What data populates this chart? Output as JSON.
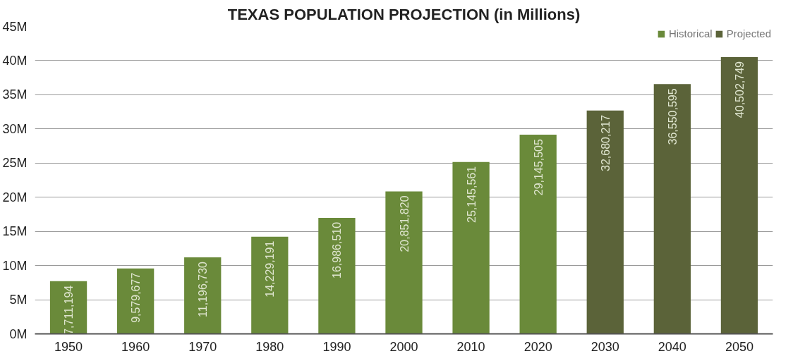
{
  "chart_data": {
    "type": "bar",
    "title": "TEXAS POPULATION PROJECTION (in Millions)",
    "categories": [
      "1950",
      "1960",
      "1970",
      "1980",
      "1990",
      "2000",
      "2010",
      "2020",
      "2030",
      "2040",
      "2050"
    ],
    "series": [
      {
        "name": "Historical",
        "color": "#6a8a3a",
        "values": [
          7711194,
          9579677,
          11196730,
          14229191,
          16986510,
          20851820,
          25145561,
          29145505,
          null,
          null,
          null
        ],
        "value_labels": [
          "7,711,194",
          "9,579,677",
          "11,196,730",
          "14,229,191",
          "16,986,510",
          "20,851,820",
          "25,145,561",
          "29,145,505",
          null,
          null,
          null
        ]
      },
      {
        "name": "Projected",
        "color": "#5b6339",
        "values": [
          null,
          null,
          null,
          null,
          null,
          null,
          null,
          null,
          32680217,
          36550595,
          40502749
        ],
        "value_labels": [
          null,
          null,
          null,
          null,
          null,
          null,
          null,
          null,
          "32,680,217",
          "36,550,595",
          "40,502,749"
        ]
      }
    ],
    "ylim": [
      0,
      45000000
    ],
    "yticks": [
      {
        "value": 0,
        "label": "0M"
      },
      {
        "value": 5000000,
        "label": "5M"
      },
      {
        "value": 10000000,
        "label": "10M"
      },
      {
        "value": 15000000,
        "label": "15M"
      },
      {
        "value": 20000000,
        "label": "20M"
      },
      {
        "value": 25000000,
        "label": "25M"
      },
      {
        "value": 30000000,
        "label": "30M"
      },
      {
        "value": 35000000,
        "label": "35M"
      },
      {
        "value": 40000000,
        "label": "40M"
      },
      {
        "value": 45000000,
        "label": "45M"
      }
    ],
    "grid": "y",
    "legend": "top right"
  }
}
